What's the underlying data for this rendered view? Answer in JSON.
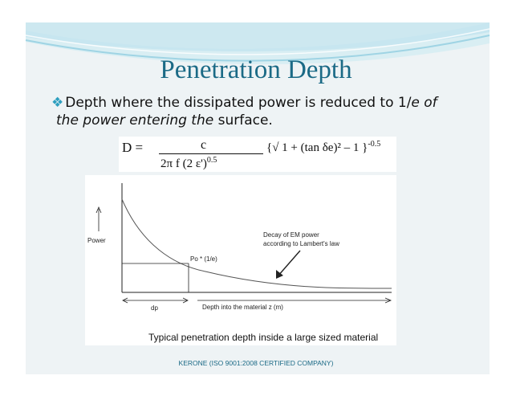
{
  "slide": {
    "title": "Penetration Depth",
    "bullet_icon": "diamond-bullet-icon",
    "bullet_line1_a": "Depth where the dissipated power is reduced to 1/",
    "bullet_line1_italic": "e of",
    "bullet_line2_italic": "the power entering the",
    "bullet_line2_b": " surface.",
    "footer": "KERONE (ISO 9001:2008 CERTIFIED COMPANY)",
    "accent_color": "#1b6a86"
  },
  "formula": {
    "lhs": "D  =",
    "numerator": "c",
    "denominator": "2π f (2 ε')",
    "denominator_exp": "0.5",
    "bracket_text": "{√ 1 + (tan δe)² – 1 }",
    "bracket_exp": "-0.5"
  },
  "figure": {
    "y_label": "Power",
    "x_label": "Depth into the material z (m)",
    "dp_label": "dp",
    "point_label": "Po * (1/e)",
    "annotation_line1": "Decay of EM power",
    "annotation_line2": "according to Lambert's law",
    "caption": "Typical penetration depth inside a large sized material"
  }
}
